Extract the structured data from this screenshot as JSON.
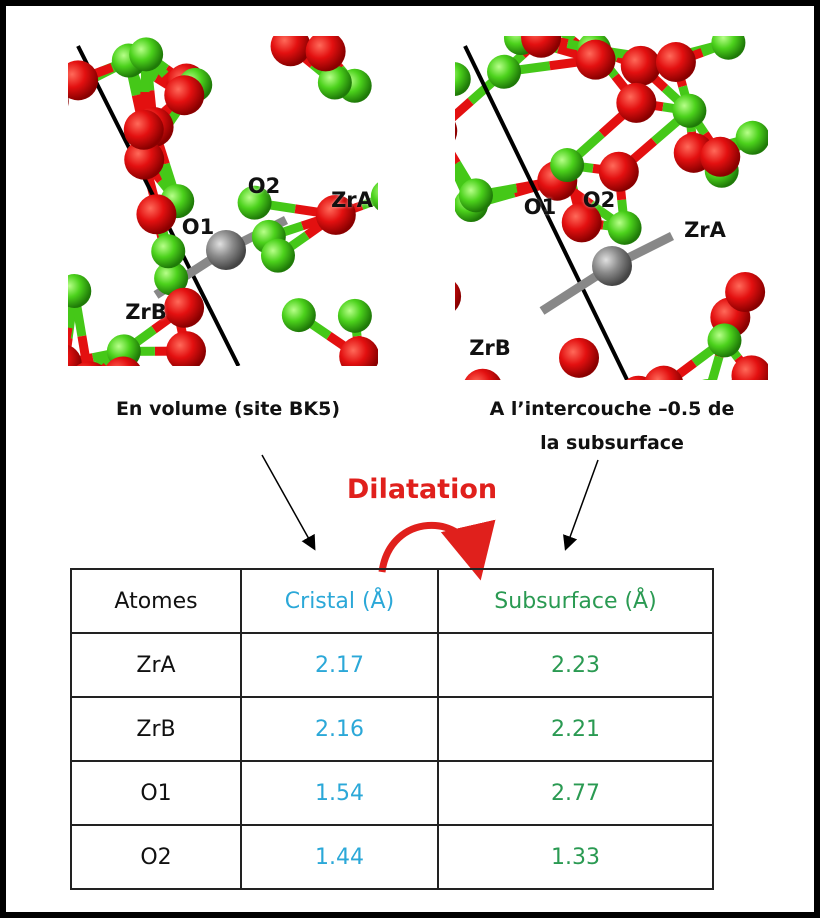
{
  "panels": [
    {
      "labels": [
        "O2",
        "ZrA",
        "O1",
        "ZrB"
      ],
      "caption": [
        "En volume (site BK5)"
      ]
    },
    {
      "labels": [
        "O1",
        "O2",
        "ZrA",
        "ZrB"
      ],
      "caption": [
        "A l’intercouche –0.5 de",
        "la subsurface"
      ]
    }
  ],
  "annotation": "Dilatation",
  "table": {
    "header": [
      "Atomes",
      "Cristal (Å)",
      "Subsurface (Å)"
    ],
    "rows": [
      [
        "ZrA",
        2.17,
        2.23
      ],
      [
        "ZrB",
        2.16,
        2.21
      ],
      [
        "O1",
        1.54,
        2.77
      ],
      [
        "O2",
        1.44,
        1.33
      ]
    ]
  }
}
